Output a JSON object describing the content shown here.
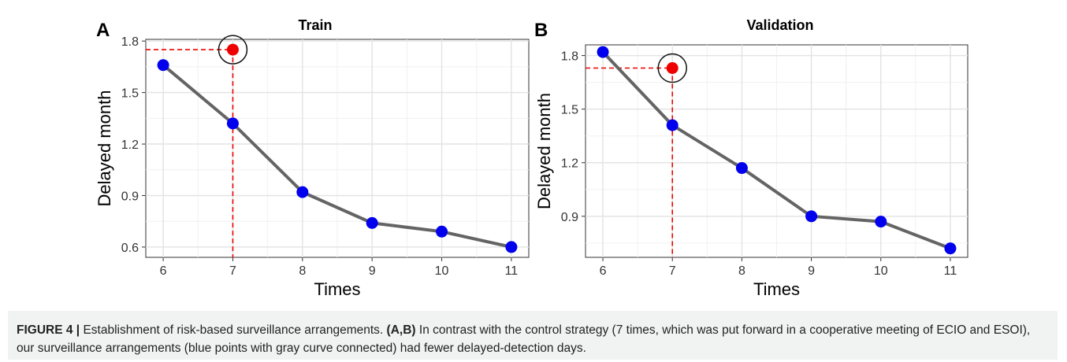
{
  "colors": {
    "line": "#646464",
    "point": "#0000ee",
    "highlight": "#ee0000",
    "reference": "#ee0000",
    "grid": "#e4e4e4",
    "caption_bg": "#f1f2f2"
  },
  "chart_data": [
    {
      "type": "line",
      "panel_label": "A",
      "title": "Train",
      "xlabel": "Times",
      "ylabel": "Delayed month",
      "x": [
        6,
        7,
        8,
        9,
        10,
        11
      ],
      "values": [
        1.66,
        1.32,
        0.92,
        0.74,
        0.69,
        0.6
      ],
      "xticks": [
        6,
        7,
        8,
        9,
        10,
        11
      ],
      "yticks": [
        "0.6",
        "0.9",
        "1.2",
        "1.5",
        "1.8"
      ],
      "xlim": [
        5.75,
        11.25
      ],
      "ylim": [
        0.54,
        1.81
      ],
      "highlight": {
        "x": 7,
        "y": 1.75,
        "circled": true
      },
      "grid": true,
      "legend": "none"
    },
    {
      "type": "line",
      "panel_label": "B",
      "title": "Validation",
      "xlabel": "Times",
      "ylabel": "Delayed month",
      "x": [
        6,
        7,
        8,
        9,
        10,
        11
      ],
      "values": [
        1.82,
        1.41,
        1.17,
        0.9,
        0.87,
        0.72
      ],
      "xticks": [
        6,
        7,
        8,
        9,
        10,
        11
      ],
      "yticks": [
        "0.9",
        "1.2",
        "1.5",
        "1.8"
      ],
      "xlim": [
        5.75,
        11.25
      ],
      "ylim": [
        0.67,
        1.86
      ],
      "highlight": {
        "x": 7,
        "y": 1.73,
        "circled": true
      },
      "grid": true,
      "legend": "none"
    }
  ],
  "caption": {
    "figure_label": "FIGURE 4 |",
    "text1": " Establishment of risk-based surveillance arrangements. ",
    "panels_ref": "(A,B)",
    "text2": " In contrast with the control strategy (7 times, which was put forward in a cooperative meeting of ECIO and ESOI), our surveillance arrangements (blue points with gray curve connected) had fewer delayed-detection days."
  }
}
